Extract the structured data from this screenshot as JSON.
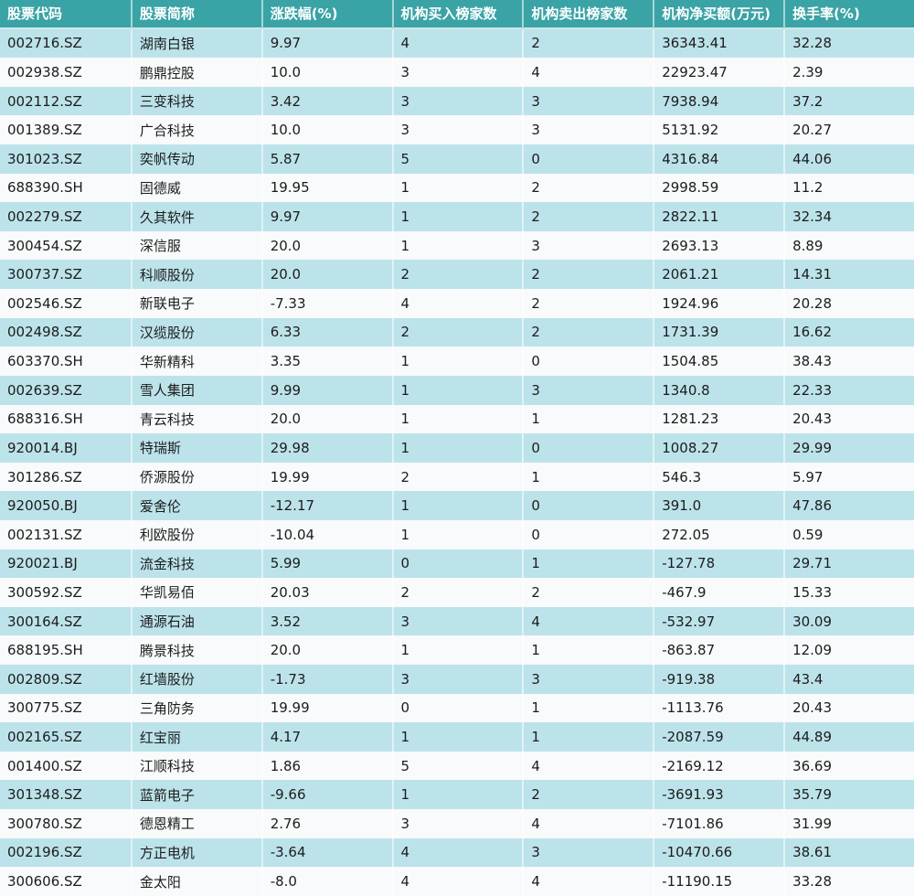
{
  "chart_data": {
    "type": "table",
    "columns": [
      "股票代码",
      "股票简称",
      "涨跌幅(%)",
      "机构买入榜家数",
      "机构卖出榜家数",
      "机构净买额(万元)",
      "换手率(%)"
    ],
    "rows": [
      [
        "002716.SZ",
        "湖南白银",
        "9.97",
        "4",
        "2",
        "36343.41",
        "32.28"
      ],
      [
        "002938.SZ",
        "鹏鼎控股",
        "10.0",
        "3",
        "4",
        "22923.47",
        "2.39"
      ],
      [
        "002112.SZ",
        "三变科技",
        "3.42",
        "3",
        "3",
        "7938.94",
        "37.2"
      ],
      [
        "001389.SZ",
        "广合科技",
        "10.0",
        "3",
        "3",
        "5131.92",
        "20.27"
      ],
      [
        "301023.SZ",
        "奕帆传动",
        "5.87",
        "5",
        "0",
        "4316.84",
        "44.06"
      ],
      [
        "688390.SH",
        "固德威",
        "19.95",
        "1",
        "2",
        "2998.59",
        "11.2"
      ],
      [
        "002279.SZ",
        "久其软件",
        "9.97",
        "1",
        "2",
        "2822.11",
        "32.34"
      ],
      [
        "300454.SZ",
        "深信服",
        "20.0",
        "1",
        "3",
        "2693.13",
        "8.89"
      ],
      [
        "300737.SZ",
        "科顺股份",
        "20.0",
        "2",
        "2",
        "2061.21",
        "14.31"
      ],
      [
        "002546.SZ",
        "新联电子",
        "-7.33",
        "4",
        "2",
        "1924.96",
        "20.28"
      ],
      [
        "002498.SZ",
        "汉缆股份",
        "6.33",
        "2",
        "2",
        "1731.39",
        "16.62"
      ],
      [
        "603370.SH",
        "华新精科",
        "3.35",
        "1",
        "0",
        "1504.85",
        "38.43"
      ],
      [
        "002639.SZ",
        "雪人集团",
        "9.99",
        "1",
        "3",
        "1340.8",
        "22.33"
      ],
      [
        "688316.SH",
        "青云科技",
        "20.0",
        "1",
        "1",
        "1281.23",
        "20.43"
      ],
      [
        "920014.BJ",
        "特瑞斯",
        "29.98",
        "1",
        "0",
        "1008.27",
        "29.99"
      ],
      [
        "301286.SZ",
        "侨源股份",
        "19.99",
        "2",
        "1",
        "546.3",
        "5.97"
      ],
      [
        "920050.BJ",
        "爱舍伦",
        "-12.17",
        "1",
        "0",
        "391.0",
        "47.86"
      ],
      [
        "002131.SZ",
        "利欧股份",
        "-10.04",
        "1",
        "0",
        "272.05",
        "0.59"
      ],
      [
        "920021.BJ",
        "流金科技",
        "5.99",
        "0",
        "1",
        "-127.78",
        "29.71"
      ],
      [
        "300592.SZ",
        "华凯易佰",
        "20.03",
        "2",
        "2",
        "-467.9",
        "15.33"
      ],
      [
        "300164.SZ",
        "通源石油",
        "3.52",
        "3",
        "4",
        "-532.97",
        "30.09"
      ],
      [
        "688195.SH",
        "腾景科技",
        "20.0",
        "1",
        "1",
        "-863.87",
        "12.09"
      ],
      [
        "002809.SZ",
        "红墙股份",
        "-1.73",
        "3",
        "3",
        "-919.38",
        "43.4"
      ],
      [
        "300775.SZ",
        "三角防务",
        "19.99",
        "0",
        "1",
        "-1113.76",
        "20.43"
      ],
      [
        "002165.SZ",
        "红宝丽",
        "4.17",
        "1",
        "1",
        "-2087.59",
        "44.89"
      ],
      [
        "001400.SZ",
        "江顺科技",
        "1.86",
        "5",
        "4",
        "-2169.12",
        "36.69"
      ],
      [
        "301348.SZ",
        "蓝箭电子",
        "-9.66",
        "1",
        "2",
        "-3691.93",
        "35.79"
      ],
      [
        "300780.SZ",
        "德恩精工",
        "2.76",
        "3",
        "4",
        "-7101.86",
        "31.99"
      ],
      [
        "002196.SZ",
        "方正电机",
        "-3.64",
        "4",
        "3",
        "-10470.66",
        "38.61"
      ],
      [
        "300606.SZ",
        "金太阳",
        "-8.0",
        "4",
        "4",
        "-11190.15",
        "33.28"
      ]
    ]
  },
  "colors": {
    "header_bg": "#3aa3a6",
    "header_text": "#ffffff",
    "row_odd_bg": "#bce3ea",
    "row_even_bg": "#f8fafb",
    "cell_text": "#1c1c1c",
    "separator": "rgba(255,255,255,0.55)"
  }
}
